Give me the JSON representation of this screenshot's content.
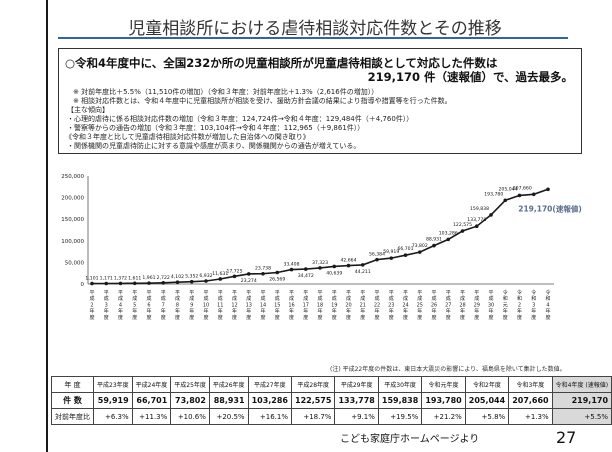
{
  "title": "児童相談所における虐待相談対応件数とその推移",
  "summary": {
    "headline1": "○令和4年度中に、全国232か所の児童相談所が児童虐待相談として対応した件数は",
    "headline2": "219,170 件（速報値）で、過去最多。",
    "notes": [
      "※ 対前年度比＋5.5%（11,510件の増加）（令和３年度：対前年度比＋1.3%（2,616件の増加））",
      "※ 相談対応件数とは、令和４年度中に児童相談所が相談を受け、援助方針会議の結果により指導や措置等を行った件数。",
      "【主な傾向】",
      "・心理的虐待に係る相談対応件数の増加（令和３年度：124,724件→令和４年度：129,484件（＋4,760件））",
      "・警察等からの通告の増加（令和３年度：103,104件→令和４年度：112,965（＋9,861件））",
      "《令和３年度と比して児童虐待相談対応件数が増加した自治体への聞き取り》",
      "・関係機関の児童虐待防止に対する意識や感度が高まり、関係機関からの通告が増えている。"
    ]
  },
  "chart_data": {
    "type": "line",
    "title": "",
    "xlabel": "",
    "ylabel": "",
    "ylim": [
      0,
      250000
    ],
    "yticks": [
      "0",
      "50,000",
      "100,000",
      "150,000",
      "200,000",
      "250,000"
    ],
    "grid": false,
    "x": [
      "平成2年度",
      "平成3年度",
      "平成4年度",
      "平成5年度",
      "平成6年度",
      "平成7年度",
      "平成8年度",
      "平成9年度",
      "平成10年度",
      "平成11年度",
      "平成12年度",
      "平成13年度",
      "平成14年度",
      "平成15年度",
      "平成16年度",
      "平成17年度",
      "平成18年度",
      "平成19年度",
      "平成20年度",
      "平成21年度",
      "平成22年度",
      "平成23年度",
      "平成24年度",
      "平成25年度",
      "平成26年度",
      "平成27年度",
      "平成28年度",
      "平成29年度",
      "平成30年度",
      "令和元年度",
      "令和2年度",
      "令和3年度",
      "令和4年度"
    ],
    "x_labels": [
      [
        "平",
        "成",
        "2",
        "年",
        "度"
      ],
      [
        "平",
        "成",
        "3",
        "年",
        "度"
      ],
      [
        "平",
        "成",
        "4",
        "年",
        "度"
      ],
      [
        "平",
        "成",
        "5",
        "年",
        "度"
      ],
      [
        "平",
        "成",
        "6",
        "年",
        "度"
      ],
      [
        "平",
        "成",
        "7",
        "年",
        "度"
      ],
      [
        "平",
        "成",
        "8",
        "年",
        "度"
      ],
      [
        "平",
        "成",
        "9",
        "年",
        "度"
      ],
      [
        "平",
        "成",
        "10",
        "年",
        "度"
      ],
      [
        "平",
        "成",
        "11",
        "年",
        "度"
      ],
      [
        "平",
        "成",
        "12",
        "年",
        "度"
      ],
      [
        "平",
        "成",
        "13",
        "年",
        "度"
      ],
      [
        "平",
        "成",
        "14",
        "年",
        "度"
      ],
      [
        "平",
        "成",
        "15",
        "年",
        "度"
      ],
      [
        "平",
        "成",
        "16",
        "年",
        "度"
      ],
      [
        "平",
        "成",
        "17",
        "年",
        "度"
      ],
      [
        "平",
        "成",
        "18",
        "年",
        "度"
      ],
      [
        "平",
        "成",
        "19",
        "年",
        "度"
      ],
      [
        "平",
        "成",
        "20",
        "年",
        "度"
      ],
      [
        "平",
        "成",
        "21",
        "年",
        "度"
      ],
      [
        "平",
        "成",
        "22",
        "年",
        "度"
      ],
      [
        "平",
        "成",
        "23",
        "年",
        "度"
      ],
      [
        "平",
        "成",
        "24",
        "年",
        "度"
      ],
      [
        "平",
        "成",
        "25",
        "年",
        "度"
      ],
      [
        "平",
        "成",
        "26",
        "年",
        "度"
      ],
      [
        "平",
        "成",
        "27",
        "年",
        "度"
      ],
      [
        "平",
        "成",
        "28",
        "年",
        "度"
      ],
      [
        "平",
        "成",
        "29",
        "年",
        "度"
      ],
      [
        "平",
        "成",
        "30",
        "年",
        "度"
      ],
      [
        "令",
        "和",
        "元",
        "年",
        "度"
      ],
      [
        "令",
        "和",
        "2",
        "年",
        "度"
      ],
      [
        "令",
        "和",
        "3",
        "年",
        "度"
      ],
      [
        "令",
        "和",
        "4",
        "年",
        "度"
      ]
    ],
    "values": [
      1101,
      1171,
      1372,
      1611,
      1961,
      2722,
      4102,
      5352,
      6932,
      11631,
      17725,
      23274,
      23738,
      26569,
      33408,
      34472,
      37323,
      40639,
      42664,
      44211,
      56384,
      59919,
      66701,
      73802,
      88931,
      103286,
      122575,
      133778,
      159838,
      193780,
      205044,
      207660,
      219170
    ],
    "labels": [
      "1,101",
      "1,171",
      "1,372",
      "1,611",
      "1,961",
      "2,722",
      "4,102",
      "5,352",
      "6,932",
      "11,631",
      "17,725",
      "23,274",
      "23,738",
      "26,569",
      "33,408",
      "34,472",
      "37,323",
      "40,639",
      "42,664",
      "44,211",
      "56,384",
      "59,919",
      "66,701",
      "73,802",
      "88,931",
      "103,286",
      "122,575",
      "133,778",
      "159,838",
      "193,780",
      "205,044",
      "207,660",
      ""
    ],
    "last_label": "219,170(速報値)",
    "accent_color": "#5b6f8c",
    "line_color": "#1a1a1a"
  },
  "footnote": "(注) 平成22年度の件数は、東日本大震災の影響により、福島県を除いて集計した数値。",
  "table": {
    "row_headers": [
      "年 度",
      "件 数",
      "対前年度比"
    ],
    "years": [
      "平成23年度",
      "平成24年度",
      "平成25年度",
      "平成26年度",
      "平成27年度",
      "平成28年度",
      "平成29年度",
      "平成30年度",
      "令和元年度",
      "令和2年度",
      "令和3年度",
      "令和4年度\n(速報値)"
    ],
    "counts": [
      "59,919",
      "66,701",
      "73,802",
      "88,931",
      "103,286",
      "122,575",
      "133,778",
      "159,838",
      "193,780",
      "205,044",
      "207,660",
      "219,170"
    ],
    "ratios": [
      "+6.3%",
      "+11.3%",
      "+10.6%",
      "+20.5%",
      "+16.1%",
      "+18.7%",
      "+9.1%",
      "+19.5%",
      "+21.2%",
      "+5.8%",
      "+1.3%",
      "+5.5%"
    ]
  },
  "credit": "こども家庭庁ホームページより",
  "page_number": "27"
}
